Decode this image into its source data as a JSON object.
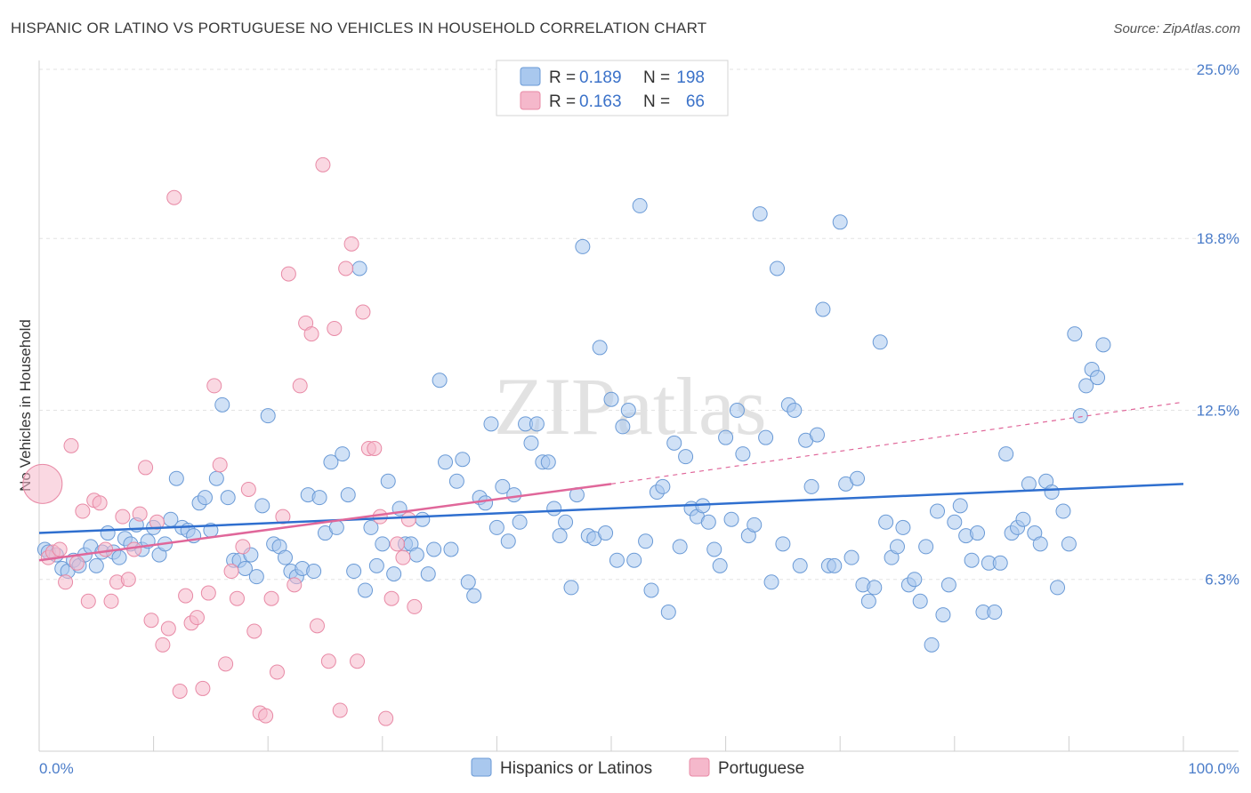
{
  "title": "HISPANIC OR LATINO VS PORTUGUESE NO VEHICLES IN HOUSEHOLD CORRELATION CHART",
  "source": "Source: ZipAtlas.com",
  "watermark": "ZIPatlas",
  "colors": {
    "blue_fill": "#a9c8ee",
    "blue_stroke": "#6a9ad6",
    "blue_line": "#2f6fcf",
    "pink_fill": "#f5b8cb",
    "pink_stroke": "#e88aa6",
    "pink_line": "#e0679a",
    "axis_text": "#4a7cc9"
  },
  "legend": {
    "rows": [
      {
        "r_label": "R =",
        "r_value": "0.189",
        "n_label": "N =",
        "n_value": "198"
      },
      {
        "r_label": "R =",
        "r_value": "0.163",
        "n_label": "N =",
        "n_value": "66"
      }
    ]
  },
  "bottom_legend": [
    "Hispanics or Latinos",
    "Portuguese"
  ],
  "chart_data": {
    "type": "scatter",
    "title": "HISPANIC OR LATINO VS PORTUGUESE NO VEHICLES IN HOUSEHOLD CORRELATION CHART",
    "xlabel": "",
    "ylabel": "No Vehicles in Household",
    "xlim": [
      0,
      100
    ],
    "ylim": [
      0,
      25.0
    ],
    "x_tick_labels": [
      "0.0%",
      "100.0%"
    ],
    "y_ticks": [
      6.3,
      12.5,
      18.8,
      25.0
    ],
    "y_tick_labels": [
      "6.3%",
      "12.5%",
      "18.8%",
      "25.0%"
    ],
    "grid": true,
    "legend_position": "top-center",
    "series": [
      {
        "name": "Hispanics or Latinos",
        "trend": {
          "x": [
            0,
            100
          ],
          "y": [
            8.0,
            9.8
          ]
        },
        "points": [
          [
            0.5,
            7.4
          ],
          [
            0.8,
            7.3
          ],
          [
            1.5,
            7.2
          ],
          [
            2,
            6.7
          ],
          [
            2.5,
            6.6
          ],
          [
            3,
            7.0
          ],
          [
            3.5,
            6.8
          ],
          [
            4,
            7.2
          ],
          [
            4.5,
            7.5
          ],
          [
            5,
            6.8
          ],
          [
            5.5,
            7.3
          ],
          [
            6,
            8.0
          ],
          [
            6.5,
            7.3
          ],
          [
            7,
            7.1
          ],
          [
            7.5,
            7.8
          ],
          [
            8,
            7.6
          ],
          [
            8.5,
            8.3
          ],
          [
            9,
            7.4
          ],
          [
            9.5,
            7.7
          ],
          [
            10,
            8.2
          ],
          [
            10.5,
            7.2
          ],
          [
            11,
            7.6
          ],
          [
            11.5,
            8.5
          ],
          [
            12,
            10.0
          ],
          [
            12.5,
            8.2
          ],
          [
            13,
            8.1
          ],
          [
            13.5,
            7.9
          ],
          [
            14,
            9.1
          ],
          [
            14.5,
            9.3
          ],
          [
            15,
            8.1
          ],
          [
            15.5,
            10.0
          ],
          [
            16,
            12.7
          ],
          [
            16.5,
            9.3
          ],
          [
            17,
            7.0
          ],
          [
            17.5,
            7.0
          ],
          [
            18,
            6.7
          ],
          [
            18.5,
            7.2
          ],
          [
            19,
            6.4
          ],
          [
            19.5,
            9.0
          ],
          [
            20,
            12.3
          ],
          [
            20.5,
            7.6
          ],
          [
            21,
            7.5
          ],
          [
            21.5,
            7.1
          ],
          [
            22,
            6.6
          ],
          [
            22.5,
            6.4
          ],
          [
            23,
            6.7
          ],
          [
            23.5,
            9.4
          ],
          [
            24,
            6.6
          ],
          [
            24.5,
            9.3
          ],
          [
            25,
            8.0
          ],
          [
            25.5,
            10.6
          ],
          [
            26,
            8.2
          ],
          [
            26.5,
            10.9
          ],
          [
            27,
            9.4
          ],
          [
            27.5,
            6.6
          ],
          [
            28,
            17.7
          ],
          [
            28.5,
            5.9
          ],
          [
            29,
            8.2
          ],
          [
            29.5,
            6.8
          ],
          [
            30,
            7.6
          ],
          [
            30.5,
            9.9
          ],
          [
            31,
            6.5
          ],
          [
            31.5,
            8.9
          ],
          [
            32,
            7.6
          ],
          [
            32.5,
            7.6
          ],
          [
            33,
            7.2
          ],
          [
            33.5,
            8.5
          ],
          [
            34,
            6.5
          ],
          [
            34.5,
            7.4
          ],
          [
            35,
            13.6
          ],
          [
            35.5,
            10.6
          ],
          [
            36,
            7.4
          ],
          [
            36.5,
            9.9
          ],
          [
            37,
            10.7
          ],
          [
            37.5,
            6.2
          ],
          [
            38,
            5.7
          ],
          [
            38.5,
            9.3
          ],
          [
            39,
            9.1
          ],
          [
            39.5,
            12.0
          ],
          [
            40,
            8.2
          ],
          [
            40.5,
            9.7
          ],
          [
            41,
            7.7
          ],
          [
            41.5,
            9.4
          ],
          [
            42,
            8.4
          ],
          [
            42.5,
            12.0
          ],
          [
            43,
            11.3
          ],
          [
            43.5,
            12.0
          ],
          [
            44,
            10.6
          ],
          [
            44.5,
            10.6
          ],
          [
            45,
            8.9
          ],
          [
            45.5,
            7.9
          ],
          [
            46,
            8.4
          ],
          [
            46.5,
            6.0
          ],
          [
            47,
            9.4
          ],
          [
            47.5,
            18.5
          ],
          [
            48,
            7.9
          ],
          [
            48.5,
            7.8
          ],
          [
            49,
            14.8
          ],
          [
            49.5,
            8.0
          ],
          [
            50,
            12.9
          ],
          [
            50.5,
            7.0
          ],
          [
            51,
            11.9
          ],
          [
            51.5,
            12.5
          ],
          [
            52,
            7.0
          ],
          [
            52.5,
            20.0
          ],
          [
            53,
            7.7
          ],
          [
            53.5,
            5.9
          ],
          [
            54,
            9.5
          ],
          [
            54.5,
            9.7
          ],
          [
            55,
            5.1
          ],
          [
            55.5,
            11.3
          ],
          [
            56,
            7.5
          ],
          [
            56.5,
            10.8
          ],
          [
            57,
            8.9
          ],
          [
            57.5,
            8.6
          ],
          [
            58,
            9.0
          ],
          [
            58.5,
            8.4
          ],
          [
            59,
            7.4
          ],
          [
            59.5,
            6.8
          ],
          [
            60,
            11.5
          ],
          [
            60.5,
            8.5
          ],
          [
            61,
            12.5
          ],
          [
            61.5,
            10.9
          ],
          [
            62,
            7.9
          ],
          [
            62.5,
            8.3
          ],
          [
            63,
            19.7
          ],
          [
            63.5,
            11.5
          ],
          [
            64,
            6.2
          ],
          [
            64.5,
            17.7
          ],
          [
            65,
            7.6
          ],
          [
            65.5,
            12.7
          ],
          [
            66,
            12.5
          ],
          [
            66.5,
            6.8
          ],
          [
            67,
            11.4
          ],
          [
            67.5,
            9.7
          ],
          [
            68,
            11.6
          ],
          [
            68.5,
            16.2
          ],
          [
            69,
            6.8
          ],
          [
            69.5,
            6.8
          ],
          [
            70,
            19.4
          ],
          [
            70.5,
            9.8
          ],
          [
            71,
            7.1
          ],
          [
            71.5,
            10.0
          ],
          [
            72,
            6.1
          ],
          [
            72.5,
            5.5
          ],
          [
            73,
            6.0
          ],
          [
            73.5,
            15.0
          ],
          [
            74,
            8.4
          ],
          [
            74.5,
            7.1
          ],
          [
            75,
            7.5
          ],
          [
            75.5,
            8.2
          ],
          [
            76,
            6.1
          ],
          [
            76.5,
            6.3
          ],
          [
            77,
            5.5
          ],
          [
            77.5,
            7.5
          ],
          [
            78,
            3.9
          ],
          [
            78.5,
            8.8
          ],
          [
            79,
            5.0
          ],
          [
            79.5,
            6.1
          ],
          [
            80,
            8.4
          ],
          [
            80.5,
            9.0
          ],
          [
            81,
            7.9
          ],
          [
            81.5,
            7.0
          ],
          [
            82,
            8.0
          ],
          [
            82.5,
            5.1
          ],
          [
            83,
            6.9
          ],
          [
            83.5,
            5.1
          ],
          [
            84,
            6.9
          ],
          [
            84.5,
            10.9
          ],
          [
            85,
            8.0
          ],
          [
            85.5,
            8.2
          ],
          [
            86,
            8.5
          ],
          [
            86.5,
            9.8
          ],
          [
            87,
            8.0
          ],
          [
            87.5,
            7.6
          ],
          [
            88,
            9.9
          ],
          [
            88.5,
            9.5
          ],
          [
            89,
            6.0
          ],
          [
            89.5,
            8.8
          ],
          [
            90,
            7.6
          ],
          [
            90.5,
            15.3
          ],
          [
            91,
            12.3
          ],
          [
            91.5,
            13.4
          ],
          [
            92,
            14.0
          ],
          [
            92.5,
            13.7
          ],
          [
            93,
            14.9
          ]
        ]
      },
      {
        "name": "Portuguese",
        "trend": {
          "x": [
            0,
            50
          ],
          "y": [
            7.0,
            9.8
          ]
        },
        "trend_extension": {
          "x": [
            50,
            100
          ],
          "y": [
            9.8,
            12.8
          ]
        },
        "points": [
          [
            0.3,
            9.8
          ],
          [
            0.8,
            7.1
          ],
          [
            1.2,
            7.3
          ],
          [
            1.8,
            7.4
          ],
          [
            2.3,
            6.2
          ],
          [
            2.8,
            11.2
          ],
          [
            3.3,
            6.9
          ],
          [
            3.8,
            8.8
          ],
          [
            4.3,
            5.5
          ],
          [
            4.8,
            9.2
          ],
          [
            5.3,
            9.1
          ],
          [
            5.8,
            7.4
          ],
          [
            6.3,
            5.5
          ],
          [
            6.8,
            6.2
          ],
          [
            7.3,
            8.6
          ],
          [
            7.8,
            6.3
          ],
          [
            8.3,
            7.4
          ],
          [
            8.8,
            8.7
          ],
          [
            9.3,
            10.4
          ],
          [
            9.8,
            4.8
          ],
          [
            10.3,
            8.4
          ],
          [
            10.8,
            3.9
          ],
          [
            11.3,
            4.5
          ],
          [
            11.8,
            20.3
          ],
          [
            12.3,
            2.2
          ],
          [
            12.8,
            5.7
          ],
          [
            13.3,
            4.7
          ],
          [
            13.8,
            4.9
          ],
          [
            14.3,
            2.3
          ],
          [
            14.8,
            5.8
          ],
          [
            15.3,
            13.4
          ],
          [
            15.8,
            10.5
          ],
          [
            16.3,
            3.2
          ],
          [
            16.8,
            6.6
          ],
          [
            17.3,
            5.6
          ],
          [
            17.8,
            7.5
          ],
          [
            18.3,
            9.6
          ],
          [
            18.8,
            4.4
          ],
          [
            19.3,
            1.4
          ],
          [
            19.8,
            1.3
          ],
          [
            20.3,
            5.6
          ],
          [
            20.8,
            2.9
          ],
          [
            21.3,
            8.6
          ],
          [
            21.8,
            17.5
          ],
          [
            22.3,
            6.1
          ],
          [
            22.8,
            13.4
          ],
          [
            23.3,
            15.7
          ],
          [
            23.8,
            15.3
          ],
          [
            24.3,
            4.6
          ],
          [
            24.8,
            21.5
          ],
          [
            25.3,
            3.3
          ],
          [
            25.8,
            15.5
          ],
          [
            26.3,
            1.5
          ],
          [
            26.8,
            17.7
          ],
          [
            27.3,
            18.6
          ],
          [
            27.8,
            3.3
          ],
          [
            28.3,
            16.1
          ],
          [
            28.8,
            11.1
          ],
          [
            29.3,
            11.1
          ],
          [
            29.8,
            8.6
          ],
          [
            30.3,
            1.2
          ],
          [
            30.8,
            5.6
          ],
          [
            31.3,
            7.6
          ],
          [
            31.8,
            7.1
          ],
          [
            32.3,
            8.5
          ],
          [
            32.8,
            5.3
          ]
        ]
      }
    ]
  }
}
